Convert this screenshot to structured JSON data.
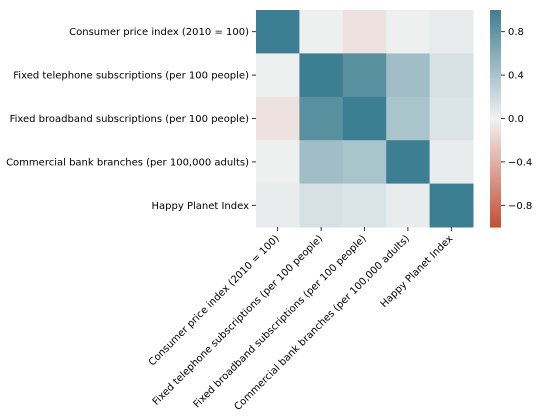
{
  "chart_data": {
    "type": "heatmap",
    "title": "",
    "xlabel": "",
    "ylabel": "",
    "rows": [
      "Consumer price index (2010 = 100)",
      "Fixed telephone subscriptions (per 100 people)",
      "Fixed broadband subscriptions (per 100 people)",
      "Commercial bank branches (per 100,000 adults)",
      "Happy Planet Index"
    ],
    "columns": [
      "Consumer price index (2010 = 100)",
      "Fixed telephone subscriptions (per 100 people)",
      "Fixed broadband subscriptions (per 100 people)",
      "Commercial bank branches (per 100,000 adults)",
      "Happy Planet Index"
    ],
    "values": [
      [
        1.0,
        0.02,
        -0.1,
        0.02,
        0.06
      ],
      [
        0.02,
        1.0,
        0.85,
        0.45,
        0.15
      ],
      [
        -0.1,
        0.85,
        1.0,
        0.4,
        0.13
      ],
      [
        0.02,
        0.45,
        0.4,
        1.0,
        0.05
      ],
      [
        0.06,
        0.15,
        0.13,
        0.05,
        1.0
      ]
    ],
    "colorbar": {
      "range": [
        -1,
        1
      ],
      "ticks": [
        "0.8",
        "0.4",
        "0.0",
        "−0.4",
        "−0.8"
      ],
      "tick_values": [
        0.8,
        0.4,
        0.0,
        -0.4,
        -0.8
      ],
      "colors": {
        "negative": "#c44e34",
        "center": "#f2f2f2",
        "positive": "#3d7f92"
      }
    }
  }
}
